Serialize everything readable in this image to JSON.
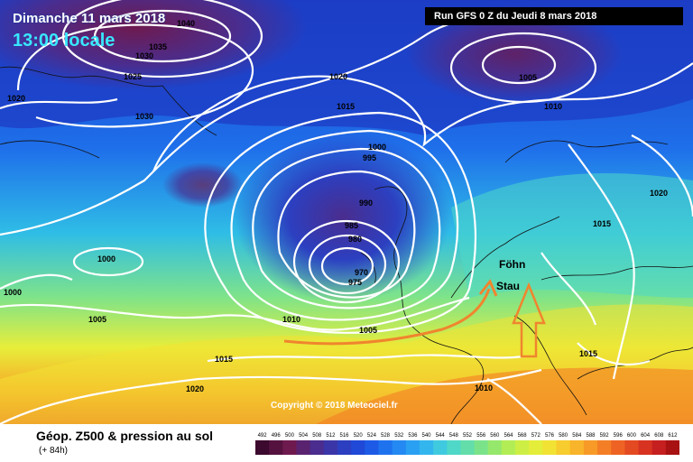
{
  "header": {
    "date": "Dimanche 11 mars 2018",
    "local_time": "13:00 locale",
    "run": "Run GFS 0 Z du Jeudi 8 mars 2018"
  },
  "copyright": "Copyright © 2018 Meteociel.fr",
  "legend": {
    "title": "Géop. Z500 & pression au sol",
    "lead": "(+ 84h)",
    "ticks": [
      "492",
      "496",
      "500",
      "504",
      "508",
      "512",
      "516",
      "520",
      "524",
      "528",
      "532",
      "536",
      "540",
      "544",
      "548",
      "552",
      "556",
      "560",
      "564",
      "568",
      "572",
      "576",
      "580",
      "584",
      "588",
      "592",
      "596",
      "600",
      "604",
      "608",
      "612"
    ],
    "colors": [
      "#3b0a2e",
      "#55123f",
      "#6e1a4f",
      "#5a2370",
      "#4a2d8e",
      "#3a36a8",
      "#2c3fc0",
      "#1f49d6",
      "#1d5be6",
      "#1f72ee",
      "#2489f2",
      "#2aa0f2",
      "#33b6ee",
      "#3fcae0",
      "#4fd8c8",
      "#63deaa",
      "#7ae38a",
      "#95e86c",
      "#b2ed55",
      "#cdef45",
      "#e4ee3a",
      "#f2e233",
      "#f7cc2e",
      "#f8b42a",
      "#f79a27",
      "#f47e25",
      "#ee6323",
      "#e44a22",
      "#d83321",
      "#c61f20",
      "#a81212"
    ]
  },
  "annotations": {
    "fohn": "Föhn",
    "stau": "Stau"
  },
  "isobar_labels": [
    "1040",
    "1035",
    "1030",
    "1025",
    "1030",
    "1020",
    "1015",
    "1010",
    "1005",
    "1000",
    "995",
    "990",
    "985",
    "980",
    "975",
    "970",
    "1020",
    "1015",
    "1010",
    "1005",
    "1000",
    "1005",
    "1010",
    "1015",
    "1020",
    "1010",
    "1015",
    "1020",
    "1010",
    "1005"
  ]
}
